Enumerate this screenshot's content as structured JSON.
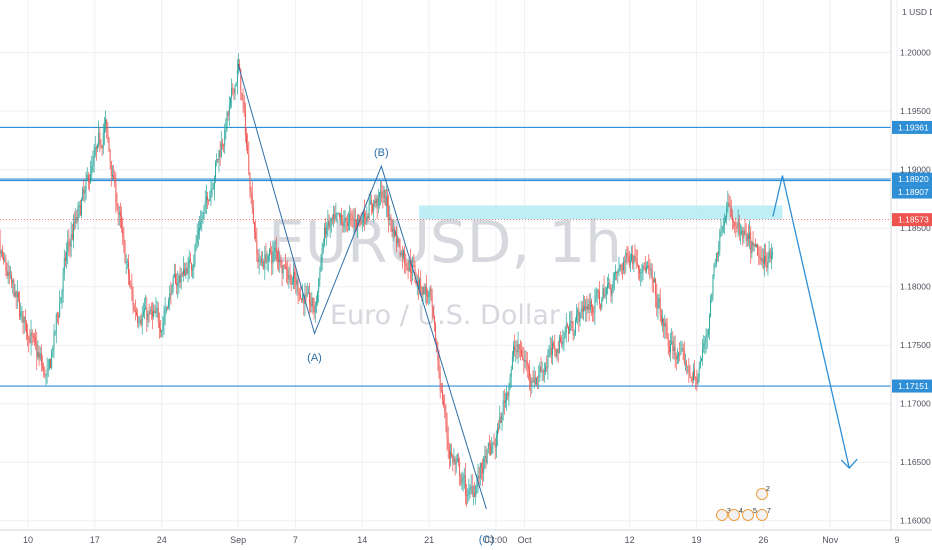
{
  "watermark": {
    "symbol": "EURUSD, 1h",
    "description": "Euro / U.S. Dollar"
  },
  "currency_label": "USD",
  "colors": {
    "up": "#26a69a",
    "down": "#ef5350",
    "line": "#2f8fd6",
    "zone": "#b3ecf5",
    "last_price": "#ef5350",
    "grid": "#eef0f4"
  },
  "chart_data": {
    "type": "candlestick",
    "symbol": "EURUSD",
    "timeframe": "1h",
    "ylim": [
      1.1575,
      1.2045
    ],
    "y_ticks": [
      "1.20000",
      "1.19500",
      "1.19000",
      "1.18500",
      "1.18000",
      "1.17500",
      "1.17000",
      "1.16500",
      "1.16000"
    ],
    "x_ticks": [
      "10",
      "17",
      "24",
      "Sep",
      "7",
      "14",
      "21",
      "03:00",
      "Oct",
      "12",
      "19",
      "26",
      "Nov",
      "9"
    ],
    "last_price": "1.18573",
    "horizontal_levels": [
      {
        "price": "1.19361",
        "label": "1.19361"
      },
      {
        "price": "1.18920",
        "label": "1.18920"
      },
      {
        "price": "1.18907",
        "label": "1.18907"
      },
      {
        "price": "1.17151",
        "label": "1.17151"
      }
    ],
    "price_path": [
      [
        "Aug 6",
        1.185
      ],
      [
        "Aug 10",
        1.176
      ],
      [
        "Aug 12",
        1.172
      ],
      [
        "Aug 14",
        1.183
      ],
      [
        "Aug 18",
        1.194
      ],
      [
        "Aug 20",
        1.183
      ],
      [
        "Aug 21",
        1.178
      ],
      [
        "Aug 24",
        1.177
      ],
      [
        "Aug 25",
        1.18
      ],
      [
        "Aug 27",
        1.182
      ],
      [
        "Aug 31",
        1.195
      ],
      [
        "Sep 1",
        1.199
      ],
      [
        "Sep 3",
        1.182
      ],
      [
        "Sep 5",
        1.183
      ],
      [
        "Sep 7",
        1.18
      ],
      [
        "Sep 9",
        1.178
      ],
      [
        "Sep 10",
        1.185
      ],
      [
        "Sep 14",
        1.186
      ],
      [
        "Sep 16",
        1.188
      ],
      [
        "Sep 18",
        1.183
      ],
      [
        "Sep 21",
        1.179
      ],
      [
        "Sep 23",
        1.166
      ],
      [
        "Sep 25",
        1.162
      ],
      [
        "Sep 28",
        1.167
      ],
      [
        "Sep 30",
        1.175
      ],
      [
        "Oct 2",
        1.172
      ],
      [
        "Oct 5",
        1.176
      ],
      [
        "Oct 7",
        1.178
      ],
      [
        "Oct 9",
        1.179
      ],
      [
        "Oct 12",
        1.183
      ],
      [
        "Oct 14",
        1.181
      ],
      [
        "Oct 16",
        1.175
      ],
      [
        "Oct 19",
        1.172
      ],
      [
        "Oct 20",
        1.176
      ],
      [
        "Oct 21",
        1.183
      ],
      [
        "Oct 22",
        1.187
      ],
      [
        "Oct 23",
        1.185
      ],
      [
        "Oct 26",
        1.182
      ],
      [
        "Oct 27",
        1.184
      ]
    ],
    "annotations": [
      {
        "label": "(A)",
        "date": "Sep 9",
        "price": 1.1752
      },
      {
        "label": "(B)",
        "date": "Sep 16",
        "price": 1.1905
      },
      {
        "label": "(C)",
        "date": "Sep 27",
        "price": 1.1605
      }
    ],
    "zone": {
      "from_date": "Sep 21",
      "to_date": "Oct 28",
      "low": 1.1861,
      "high": 1.1866
    },
    "projection": [
      [
        "Oct 27",
        1.186
      ],
      [
        "Oct 28",
        1.1895
      ],
      [
        "Nov 4",
        1.1645
      ]
    ],
    "events_badge": {
      "counts": [
        "3",
        "4",
        "5",
        "7"
      ],
      "top": "2"
    }
  }
}
